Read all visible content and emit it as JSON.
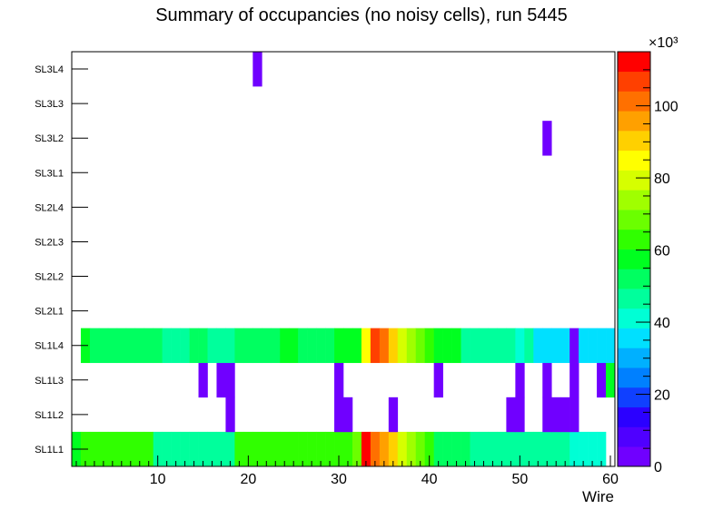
{
  "chart_data": {
    "type": "heatmap",
    "title": "Summary of occupancies (no noisy cells), run 5445",
    "xlabel": "Wire",
    "ylabel": "",
    "xlim": [
      0.5,
      60.5
    ],
    "x_ticks": [
      10,
      20,
      30,
      40,
      50,
      60
    ],
    "y_categories": [
      "SL1L1",
      "SL1L2",
      "SL1L3",
      "SL1L4",
      "SL2L1",
      "SL2L2",
      "SL2L3",
      "SL2L4",
      "SL3L1",
      "SL3L2",
      "SL3L3",
      "SL3L4"
    ],
    "z_range": [
      0,
      115000
    ],
    "colorbar": {
      "exponent_label": "×10³",
      "ticks": [
        0,
        20,
        40,
        60,
        80,
        100
      ],
      "scale": 1000
    },
    "cells": {
      "SL1L1": [
        [
          1,
          60000
        ],
        [
          2,
          64000
        ],
        [
          3,
          64000
        ],
        [
          4,
          64000
        ],
        [
          5,
          64000
        ],
        [
          6,
          64000
        ],
        [
          7,
          64000
        ],
        [
          8,
          64000
        ],
        [
          9,
          64000
        ],
        [
          10,
          48000
        ],
        [
          11,
          48000
        ],
        [
          12,
          48000
        ],
        [
          13,
          48000
        ],
        [
          14,
          48000
        ],
        [
          15,
          48000
        ],
        [
          16,
          48000
        ],
        [
          17,
          48000
        ],
        [
          18,
          48000
        ],
        [
          19,
          64000
        ],
        [
          20,
          64000
        ],
        [
          21,
          64000
        ],
        [
          22,
          64000
        ],
        [
          23,
          64000
        ],
        [
          24,
          64000
        ],
        [
          25,
          64000
        ],
        [
          26,
          64000
        ],
        [
          27,
          64000
        ],
        [
          28,
          64000
        ],
        [
          29,
          64000
        ],
        [
          30,
          64000
        ],
        [
          31,
          64000
        ],
        [
          32,
          66000
        ],
        [
          33,
          112000
        ],
        [
          34,
          104000
        ],
        [
          35,
          95000
        ],
        [
          36,
          88000
        ],
        [
          37,
          80000
        ],
        [
          38,
          72000
        ],
        [
          39,
          68000
        ],
        [
          40,
          64000
        ],
        [
          41,
          52000
        ],
        [
          42,
          52000
        ],
        [
          43,
          52000
        ],
        [
          44,
          52000
        ],
        [
          45,
          44000
        ],
        [
          46,
          44000
        ],
        [
          47,
          44000
        ],
        [
          48,
          44000
        ],
        [
          49,
          44000
        ],
        [
          50,
          44000
        ],
        [
          51,
          44000
        ],
        [
          52,
          44000
        ],
        [
          53,
          44000
        ],
        [
          54,
          44000
        ],
        [
          55,
          44000
        ],
        [
          56,
          40000
        ],
        [
          57,
          40000
        ],
        [
          58,
          40000
        ],
        [
          59,
          40000
        ]
      ],
      "SL1L2": [
        [
          18,
          3000
        ],
        [
          30,
          3000
        ],
        [
          31,
          3000
        ],
        [
          36,
          3000
        ],
        [
          49,
          3000
        ],
        [
          50,
          3000
        ],
        [
          53,
          3000
        ],
        [
          54,
          3000
        ],
        [
          55,
          3000
        ],
        [
          56,
          3000
        ]
      ],
      "SL1L3": [
        [
          15,
          3000
        ],
        [
          17,
          3000
        ],
        [
          18,
          3000
        ],
        [
          30,
          3000
        ],
        [
          41,
          3000
        ],
        [
          50,
          3000
        ],
        [
          53,
          3000
        ],
        [
          56,
          3000
        ],
        [
          59,
          3000
        ],
        [
          60,
          55000
        ]
      ],
      "SL1L4": [
        [
          2,
          60000
        ],
        [
          3,
          52000
        ],
        [
          4,
          52000
        ],
        [
          5,
          52000
        ],
        [
          6,
          52000
        ],
        [
          7,
          52000
        ],
        [
          8,
          52000
        ],
        [
          9,
          52000
        ],
        [
          10,
          52000
        ],
        [
          11,
          44000
        ],
        [
          12,
          44000
        ],
        [
          13,
          44000
        ],
        [
          14,
          54000
        ],
        [
          15,
          54000
        ],
        [
          16,
          44000
        ],
        [
          17,
          44000
        ],
        [
          18,
          44000
        ],
        [
          19,
          52000
        ],
        [
          20,
          52000
        ],
        [
          21,
          52000
        ],
        [
          22,
          52000
        ],
        [
          23,
          52000
        ],
        [
          24,
          58000
        ],
        [
          25,
          58000
        ],
        [
          26,
          52000
        ],
        [
          27,
          52000
        ],
        [
          28,
          52000
        ],
        [
          29,
          52000
        ],
        [
          30,
          58000
        ],
        [
          31,
          58000
        ],
        [
          32,
          58000
        ],
        [
          33,
          84000
        ],
        [
          34,
          108000
        ],
        [
          35,
          100000
        ],
        [
          36,
          88000
        ],
        [
          37,
          80000
        ],
        [
          38,
          72000
        ],
        [
          39,
          66000
        ],
        [
          40,
          62000
        ],
        [
          41,
          56000
        ],
        [
          42,
          56000
        ],
        [
          43,
          56000
        ],
        [
          44,
          46000
        ],
        [
          45,
          46000
        ],
        [
          46,
          46000
        ],
        [
          47,
          46000
        ],
        [
          48,
          46000
        ],
        [
          49,
          46000
        ],
        [
          50,
          42000
        ],
        [
          51,
          44000
        ],
        [
          52,
          38000
        ],
        [
          53,
          38000
        ],
        [
          54,
          38000
        ],
        [
          55,
          38000
        ],
        [
          56,
          3000
        ],
        [
          57,
          36000
        ],
        [
          58,
          36000
        ],
        [
          59,
          36000
        ],
        [
          60,
          36000
        ]
      ],
      "SL3L2": [
        [
          53,
          3000
        ]
      ],
      "SL3L4": [
        [
          21,
          3000
        ]
      ]
    }
  }
}
